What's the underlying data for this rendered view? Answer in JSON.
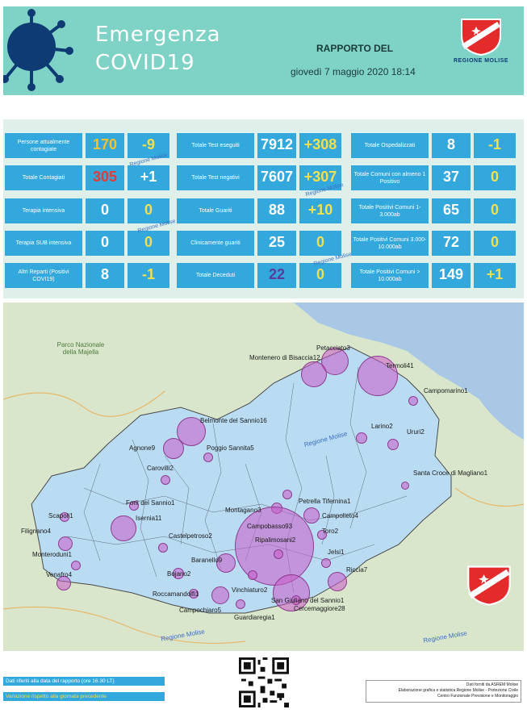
{
  "header": {
    "title_line1": "Emergenza",
    "title_line2": "COVID19",
    "report_label": "RAPPORTO DEL",
    "report_datetime": "giovedì 7 maggio 2020 18:14",
    "logo_text": "REGIONE MOLISE"
  },
  "stats": {
    "col1": [
      {
        "label": "Persone attualmente contagiate",
        "value": "170",
        "delta": "-9"
      },
      {
        "label": "Totale Contagiati",
        "value": "305",
        "delta": "+1"
      },
      {
        "label": "Terapia intensiva",
        "value": "0",
        "delta": "0"
      },
      {
        "label": "Terapia SUB intensiva",
        "value": "0",
        "delta": "0"
      },
      {
        "label": "Altri Reparti (Positivi COVI19)",
        "value": "8",
        "delta": "-1"
      }
    ],
    "col2": [
      {
        "label": "Totale Test eseguiti",
        "value": "7912",
        "delta": "+308"
      },
      {
        "label": "Totale Test negativi",
        "value": "7607",
        "delta": "+307"
      },
      {
        "label": "Totale Guariti",
        "value": "88",
        "delta": "+10"
      },
      {
        "label": "Clinicamente guariti",
        "value": "25",
        "delta": "0"
      },
      {
        "label": "Totale Deceduti",
        "value": "22",
        "delta": "0"
      }
    ],
    "col3": [
      {
        "label": "Totale Ospedalizzati",
        "value": "8",
        "delta": "-1"
      },
      {
        "label": "Totale Comuni con almeno 1 Positivo",
        "value": "37",
        "delta": "0"
      },
      {
        "label": "Totale Positivi Comuni 1-3.000ab",
        "value": "65",
        "delta": "0"
      },
      {
        "label": "Totale Positivi Comuni 3.000-10.000ab",
        "value": "72",
        "delta": "0"
      },
      {
        "label": "Totale Positivi Comuni > 10.000ab",
        "value": "149",
        "delta": "+1"
      }
    ],
    "watermark": "Regione Molise"
  },
  "map": {
    "park_label": "Parco Nazionale della Majella",
    "region_label": "Regione Molise",
    "towns": [
      "Petacciato3",
      "Montenero di Bisaccia12",
      "Termoli41",
      "Campomarino1",
      "Belmonte del Sannio16",
      "Larino2",
      "Ururi2",
      "Agnone9",
      "Poggio Sannita5",
      "Carovilli2",
      "Santa Croce di Magliano1",
      "Forlì del Sannio1",
      "Petrella Tifernina1",
      "Scapoli1",
      "Montagano3",
      "Campolieto4",
      "Isernia11",
      "Campobasso93",
      "Filignano4",
      "Castelpetroso2",
      "Ripalimosani2",
      "Toro2",
      "Monteroduni1",
      "Baranello9",
      "Jelsi1",
      "Bojano2",
      "Riccia7",
      "Venafro4",
      "Vinchiaturo2",
      "Roccamandolfi1",
      "San Giuliano del Sannio1",
      "Cercemaggiore28",
      "Campochiaro5",
      "Guardiaregia1"
    ]
  },
  "footer": {
    "note1": "Dati riferiti alla data del rapporto  (ore 16.30 LT)",
    "note2": "Variazione rispetto alla giornata precedente",
    "credit1": "Dati forniti da ASREM Molise",
    "credit2": "Elaborazione grafica e statistica Regione Molise - Protezione Civile",
    "credit3": "Centro Funzionale Previsione e Monitoraggio"
  },
  "colors": {
    "header_bg": "#7fd2c6",
    "cell_bg": "#32a8dd",
    "panel_bg": "#dff0ea",
    "bubble": "#c85ac8"
  }
}
